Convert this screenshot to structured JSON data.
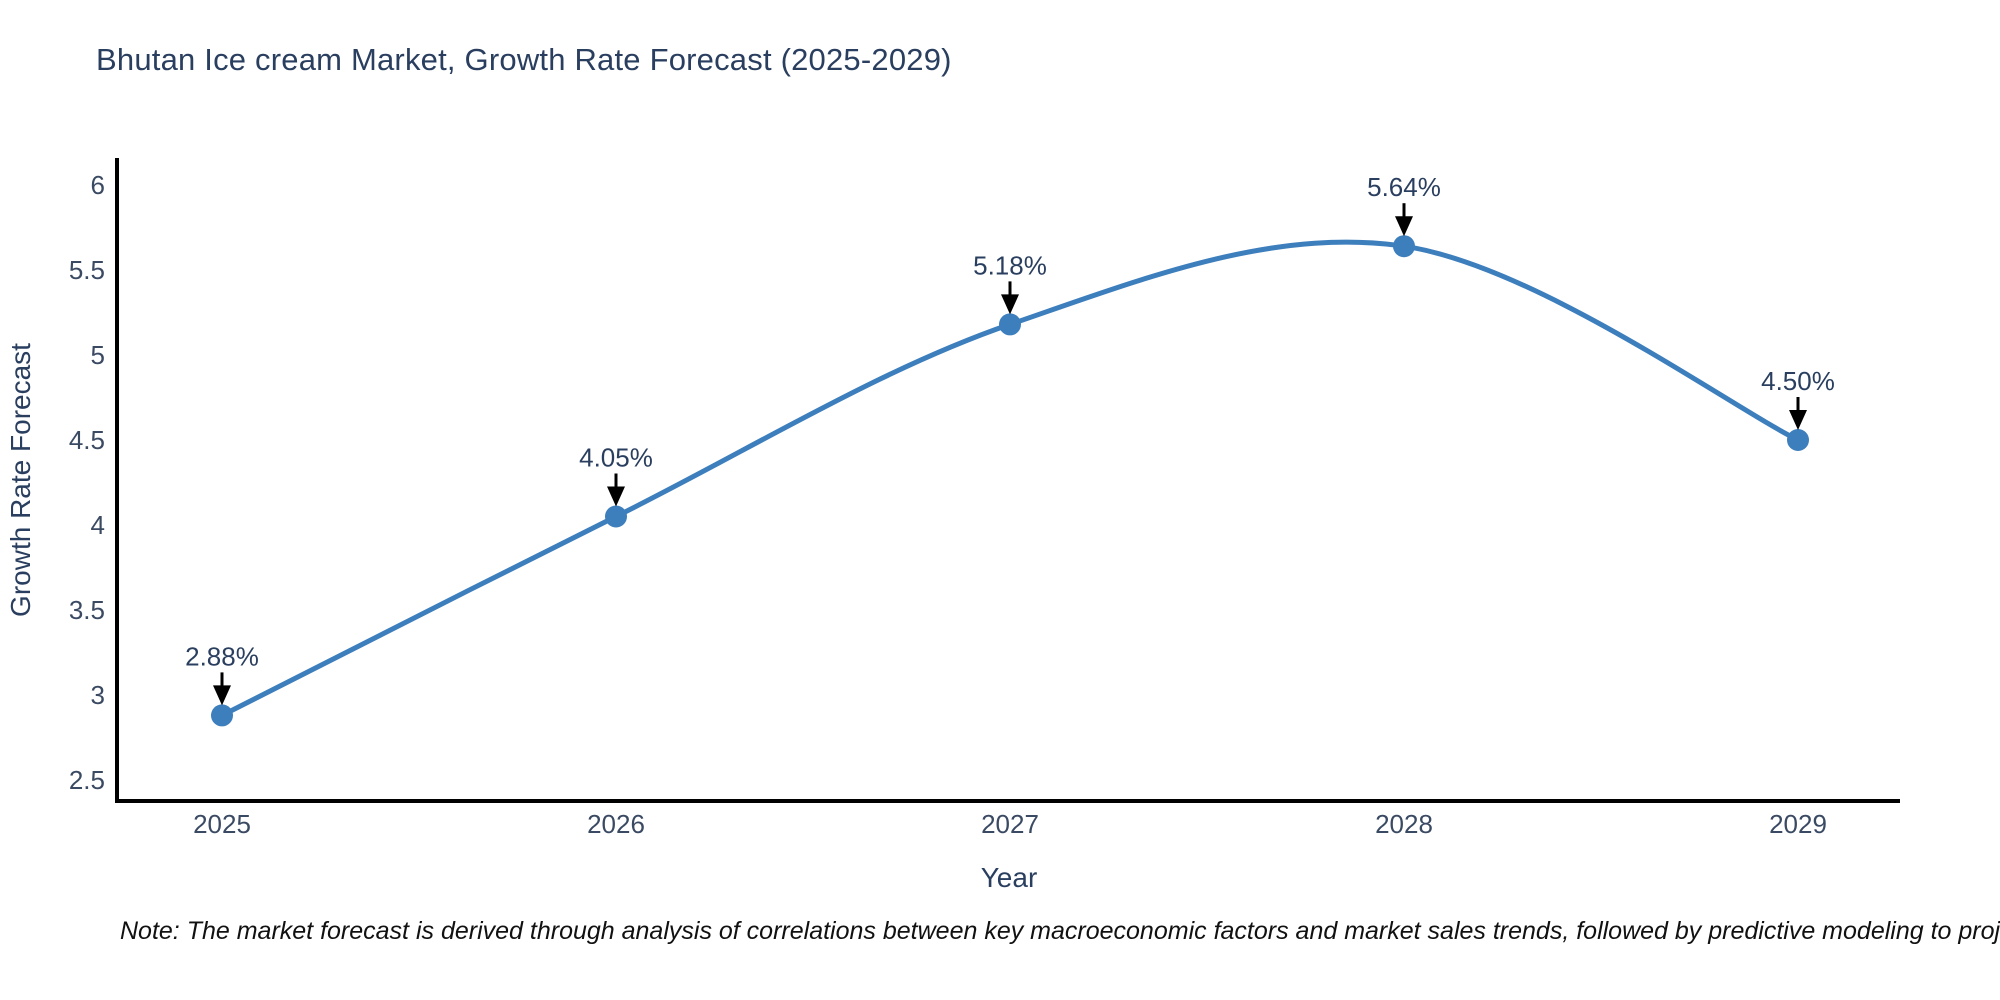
{
  "chart_data": {
    "type": "line",
    "line_shape": "spline",
    "title": "Bhutan Ice cream Market, Growth Rate Forecast (2025-2029)",
    "xlabel": "Year",
    "ylabel": "Growth Rate Forecast",
    "x": [
      2025,
      2026,
      2027,
      2028,
      2029
    ],
    "x_tick_labels": [
      "2025",
      "2026",
      "2027",
      "2028",
      "2029"
    ],
    "values": [
      2.88,
      4.05,
      5.18,
      5.64,
      4.5
    ],
    "point_labels": [
      "2.88%",
      "4.05%",
      "5.18%",
      "5.64%",
      "4.50%"
    ],
    "y_ticks": [
      2.5,
      3,
      3.5,
      4,
      4.5,
      5,
      5.5,
      6
    ],
    "y_tick_labels": [
      "2.5",
      "3",
      "3.5",
      "4",
      "4.5",
      "5",
      "5.5",
      "6"
    ],
    "ylim": [
      2.5,
      6
    ],
    "grid": false,
    "legend": "none",
    "marker": "circle",
    "annotation_arrows": true,
    "colors": {
      "line": "#3d7ebd",
      "marker": "#3d7ebd",
      "axis_line": "#000000",
      "title_text": "#2a3f5f",
      "axis_title_text": "#2a3f5f",
      "tick_text": "#3b4a63",
      "annotation_text": "#2a3f5f",
      "arrow": "#000000",
      "note_text": "#111111"
    },
    "footnote": "Note: The market forecast is derived through analysis of correlations between key macroeconomic factors and market sales trends, followed by predictive modeling to project future sales"
  }
}
